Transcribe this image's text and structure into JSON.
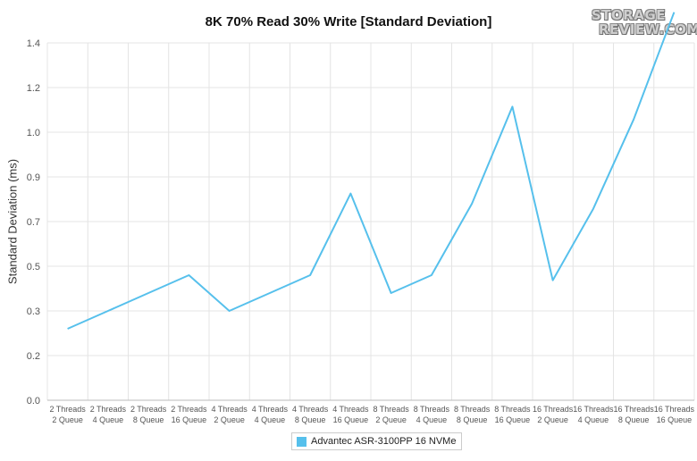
{
  "chart_data": {
    "type": "line",
    "title": "8K 70% Read 30% Write [Standard Deviation]",
    "xlabel": "",
    "ylabel": "Standard Deviation (ms)",
    "ylim": [
      0,
      1.4
    ],
    "yticks": [
      "0.0",
      "0.2",
      "0.3",
      "0.5",
      "0.7",
      "0.9",
      "1.0",
      "1.2",
      "1.4"
    ],
    "grid": true,
    "legend_position": "bottom-center",
    "categories": [
      [
        "2 Threads",
        "2 Queue"
      ],
      [
        "2 Threads",
        "4 Queue"
      ],
      [
        "2 Threads",
        "8 Queue"
      ],
      [
        "2 Threads",
        "16 Queue"
      ],
      [
        "4 Threads",
        "2 Queue"
      ],
      [
        "4 Threads",
        "4 Queue"
      ],
      [
        "4 Threads",
        "8 Queue"
      ],
      [
        "4 Threads",
        "16 Queue"
      ],
      [
        "8 Threads",
        "2 Queue"
      ],
      [
        "8 Threads",
        "4 Queue"
      ],
      [
        "8 Threads",
        "8 Queue"
      ],
      [
        "8 Threads",
        "16 Queue"
      ],
      [
        "16 Threads",
        "2 Queue"
      ],
      [
        "16 Threads",
        "4 Queue"
      ],
      [
        "16 Threads",
        "8 Queue"
      ],
      [
        "16 Threads",
        "16 Queue"
      ]
    ],
    "series": [
      {
        "name": "Advantec ASR-3100PP 16 NVMe",
        "color": "#56c0ec",
        "values": [
          0.28,
          0.35,
          0.42,
          0.49,
          0.35,
          0.42,
          0.49,
          0.81,
          0.42,
          0.49,
          0.77,
          1.15,
          0.47,
          0.75,
          1.1,
          1.52
        ]
      }
    ]
  },
  "logo": {
    "line1": "STORAGE",
    "line2": "REVIEW.COM"
  }
}
